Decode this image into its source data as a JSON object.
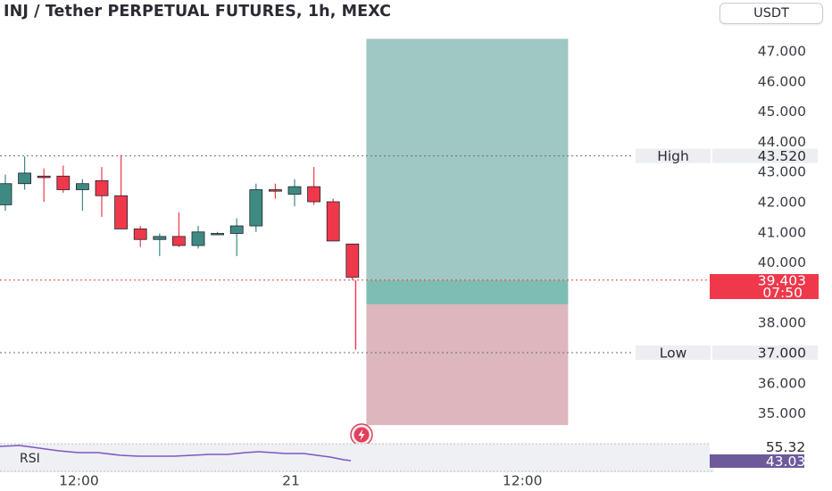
{
  "header": {
    "title": "INJ / Tether PERPETUAL FUTURES, 1h, MEXC",
    "currency_label": "USDT"
  },
  "colors": {
    "bull": "#3e8a82",
    "bear": "#f0384b",
    "target_zone": "#9fc7c3",
    "target_zone_entry": "#7ebdb3",
    "stop_zone": "#deb6bd",
    "price_tag": "#f0384b",
    "rsi_line": "#7e57c2",
    "rsi_tag": "#6c5a9b"
  },
  "chart_data": {
    "type": "candlestick",
    "title": "INJ / Tether PERPETUAL FUTURES, 1h, MEXC",
    "price_axis": {
      "ticks": [
        "47.000",
        "46.000",
        "45.000",
        "44.000",
        "43.000",
        "42.000",
        "41.000",
        "40.000",
        "38.000",
        "36.000",
        "35.000"
      ]
    },
    "time_axis": {
      "ticks": [
        {
          "label": "12:00",
          "index": 4
        },
        {
          "label": "21",
          "index": 15
        },
        {
          "label": "12:00",
          "index": 27
        }
      ]
    },
    "candles": [
      {
        "o": 41.9,
        "h": 42.9,
        "l": 41.7,
        "c": 42.6
      },
      {
        "o": 42.6,
        "h": 43.5,
        "l": 42.4,
        "c": 42.95
      },
      {
        "o": 42.85,
        "h": 43.1,
        "l": 42.0,
        "c": 42.8
      },
      {
        "o": 42.85,
        "h": 43.2,
        "l": 42.3,
        "c": 42.4
      },
      {
        "o": 42.4,
        "h": 42.75,
        "l": 41.7,
        "c": 42.6
      },
      {
        "o": 42.7,
        "h": 43.15,
        "l": 41.5,
        "c": 42.2
      },
      {
        "o": 42.2,
        "h": 43.55,
        "l": 41.1,
        "c": 41.1
      },
      {
        "o": 41.1,
        "h": 41.2,
        "l": 40.5,
        "c": 40.75
      },
      {
        "o": 40.75,
        "h": 40.95,
        "l": 40.2,
        "c": 40.85
      },
      {
        "o": 40.85,
        "h": 41.65,
        "l": 40.5,
        "c": 40.55
      },
      {
        "o": 40.55,
        "h": 41.2,
        "l": 40.45,
        "c": 41.0
      },
      {
        "o": 40.95,
        "h": 41.0,
        "l": 40.95,
        "c": 40.95
      },
      {
        "o": 40.95,
        "h": 41.45,
        "l": 40.2,
        "c": 41.2
      },
      {
        "o": 41.2,
        "h": 42.6,
        "l": 41.0,
        "c": 42.4
      },
      {
        "o": 42.4,
        "h": 42.6,
        "l": 42.1,
        "c": 42.35
      },
      {
        "o": 42.25,
        "h": 42.75,
        "l": 41.85,
        "c": 42.5
      },
      {
        "o": 42.5,
        "h": 43.15,
        "l": 41.9,
        "c": 42.0
      },
      {
        "o": 42.0,
        "h": 42.1,
        "l": 40.7,
        "c": 40.7
      },
      {
        "o": 40.6,
        "h": 40.6,
        "l": 39.4,
        "c": 39.5
      }
    ],
    "current_bar": {
      "index": 19,
      "o": 39.403,
      "l": 37.1
    },
    "levels": [
      {
        "label": "High",
        "value": "43.520",
        "price": 43.52
      },
      {
        "label": "Low",
        "value": "37.000",
        "price": 37.0
      }
    ],
    "last_price": {
      "value": "39.403",
      "countdown": "07:50",
      "price": 39.403
    },
    "position": {
      "entry": 39.403,
      "target": 47.4,
      "stop_through": 38.6,
      "stop": 34.6,
      "start_index": 19,
      "end_index": 29
    },
    "rsi": {
      "label": "RSI",
      "levels": [
        "55.32",
        "43.03"
      ]
    }
  }
}
